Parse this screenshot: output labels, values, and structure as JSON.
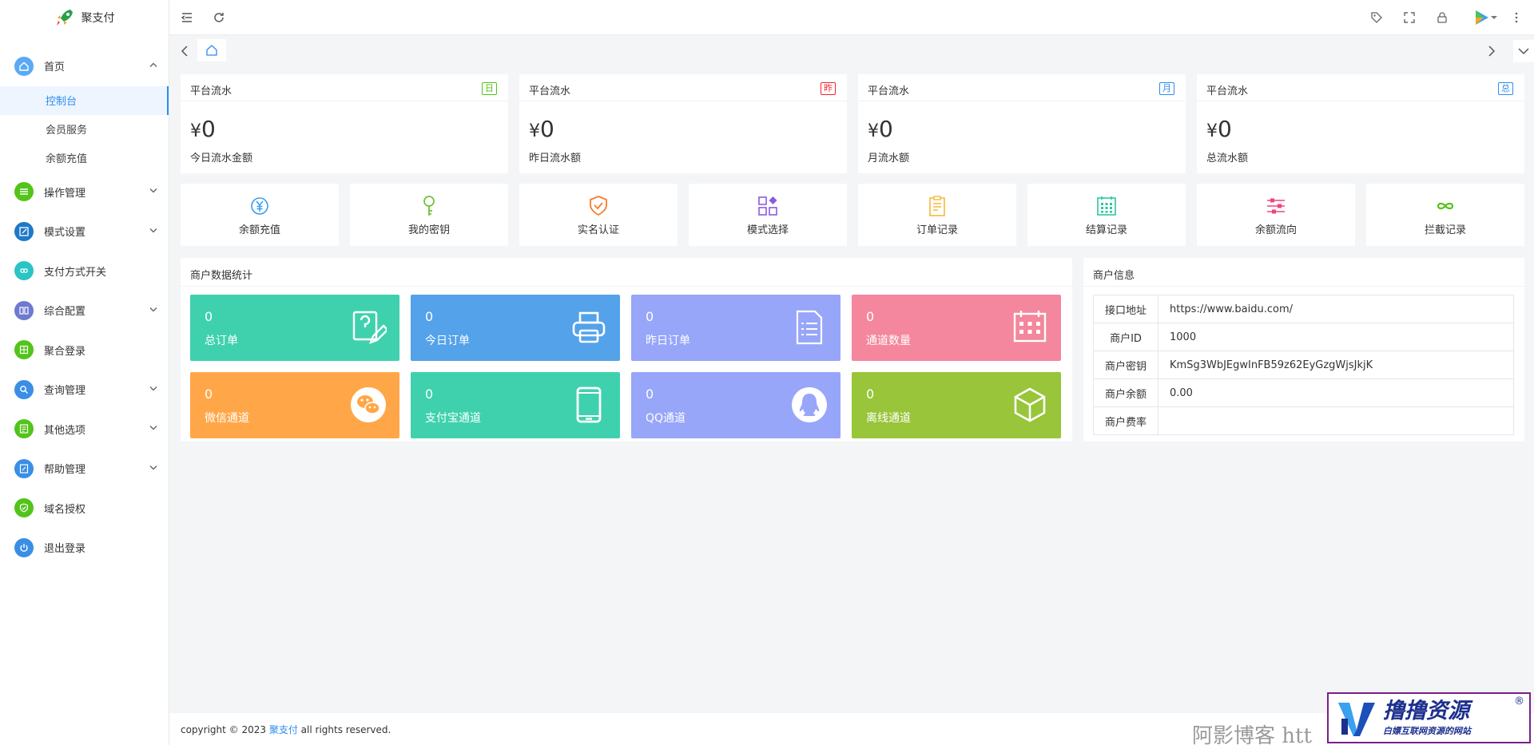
{
  "app": {
    "title": "聚支付"
  },
  "sidebar": {
    "items": [
      {
        "label": "首页",
        "color": "#5aa9f5",
        "icon": "home-icon",
        "expanded": true,
        "children": [
          {
            "label": "控制台",
            "active": true
          },
          {
            "label": "会员服务"
          },
          {
            "label": "余额充值"
          }
        ]
      },
      {
        "label": "操作管理",
        "color": "#52c41a",
        "icon": "sliders-icon",
        "arrow": true
      },
      {
        "label": "模式设置",
        "color": "#1e78c8",
        "icon": "edit-icon",
        "arrow": true
      },
      {
        "label": "支付方式开关",
        "color": "#2bc4c4",
        "icon": "link-icon"
      },
      {
        "label": "综合配置",
        "color": "#6d7ad0",
        "icon": "book-icon",
        "arrow": true
      },
      {
        "label": "聚合登录",
        "color": "#52c41a",
        "icon": "grid-icon"
      },
      {
        "label": "查询管理",
        "color": "#3a8ee6",
        "icon": "search-icon",
        "arrow": true
      },
      {
        "label": "其他选项",
        "color": "#52c41a",
        "icon": "list-icon",
        "arrow": true
      },
      {
        "label": "帮助管理",
        "color": "#3a8ee6",
        "icon": "help-icon",
        "arrow": true
      },
      {
        "label": "域名授权",
        "color": "#52c41a",
        "icon": "shield-icon"
      },
      {
        "label": "退出登录",
        "color": "#3a8ee6",
        "icon": "power-icon"
      }
    ]
  },
  "stats": [
    {
      "title": "平台流水",
      "badge": "日",
      "badge_color": "#52c41a",
      "currency": "¥",
      "value": "0",
      "sub": "今日流水金额"
    },
    {
      "title": "平台流水",
      "badge": "昨",
      "badge_color": "#f5222d",
      "currency": "¥",
      "value": "0",
      "sub": "昨日流水额"
    },
    {
      "title": "平台流水",
      "badge": "月",
      "badge_color": "#2d8cf0",
      "currency": "¥",
      "value": "0",
      "sub": "月流水额"
    },
    {
      "title": "平台流水",
      "badge": "总",
      "badge_color": "#2d8cf0",
      "currency": "¥",
      "value": "0",
      "sub": "总流水额"
    }
  ],
  "shortcuts": [
    {
      "label": "余额充值",
      "icon": "yen-circle-icon",
      "color": "#3a9df0"
    },
    {
      "label": "我的密钥",
      "icon": "key-icon",
      "color": "#73c23a"
    },
    {
      "label": "实名认证",
      "icon": "shield-check-icon",
      "color": "#f57c2b"
    },
    {
      "label": "模式选择",
      "icon": "apps-icon",
      "color": "#8a5be0"
    },
    {
      "label": "订单记录",
      "icon": "clipboard-icon",
      "color": "#f5b93a"
    },
    {
      "label": "结算记录",
      "icon": "calendar-icon",
      "color": "#2cc7a0"
    },
    {
      "label": "余额流向",
      "icon": "sliders-icon",
      "color": "#f0437c"
    },
    {
      "label": "拦截记录",
      "icon": "infinity-icon",
      "color": "#52c41a"
    }
  ],
  "merchant_stats": {
    "title": "商户数据统计",
    "tiles": [
      {
        "value": "0",
        "label": "总订单",
        "color": "#3fd1ad",
        "icon": "edit-doc-icon"
      },
      {
        "value": "0",
        "label": "今日订单",
        "color": "#54a2ea",
        "icon": "printer-icon"
      },
      {
        "value": "0",
        "label": "昨日订单",
        "color": "#97a6f9",
        "icon": "document-icon"
      },
      {
        "value": "0",
        "label": "通道数量",
        "color": "#f4879d",
        "icon": "calendar-icon"
      },
      {
        "value": "0",
        "label": "微信通道",
        "color": "#ffa748",
        "icon": "wechat-icon"
      },
      {
        "value": "0",
        "label": "支付宝通道",
        "color": "#3fd1ad",
        "icon": "phone-icon"
      },
      {
        "value": "0",
        "label": "QQ通道",
        "color": "#97a6f9",
        "icon": "qq-icon"
      },
      {
        "value": "0",
        "label": "离线通道",
        "color": "#98c53a",
        "icon": "cube-icon"
      }
    ]
  },
  "merchant_info": {
    "title": "商户信息",
    "rows": [
      {
        "key": "接口地址",
        "value": "https://www.baidu.com/"
      },
      {
        "key": "商户ID",
        "value": "1000"
      },
      {
        "key": "商户密钥",
        "value": "KmSg3WbJEgwInFB59z62EyGzgWjsJkjK"
      },
      {
        "key": "商户余额",
        "value": "0.00"
      },
      {
        "key": "商户费率",
        "value": ""
      }
    ]
  },
  "footer": {
    "prefix": "copyright © 2023 ",
    "link": "聚支付",
    "suffix": " all rights reserved."
  },
  "watermark": {
    "text": "阿影博客 htt",
    "brand": "撸撸资源",
    "slogan": "白嫖互联网资源的网站",
    "reg": "®"
  }
}
